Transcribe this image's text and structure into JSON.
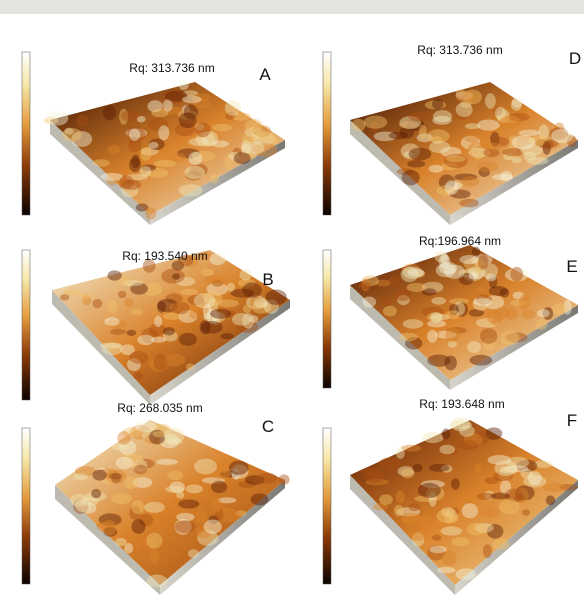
{
  "panels": [
    {
      "letter": "A",
      "rq": "Rq: 313.736 nm"
    },
    {
      "letter": "B",
      "rq": "Rq: 193.540 nm"
    },
    {
      "letter": "C",
      "rq": "Rq: 268.035 nm"
    },
    {
      "letter": "D",
      "rq": "Rq: 313.736 nm"
    },
    {
      "letter": "E",
      "rq": "Rq:196.964 nm"
    },
    {
      "letter": "F",
      "rq": "Rq: 193.648 nm"
    }
  ]
}
